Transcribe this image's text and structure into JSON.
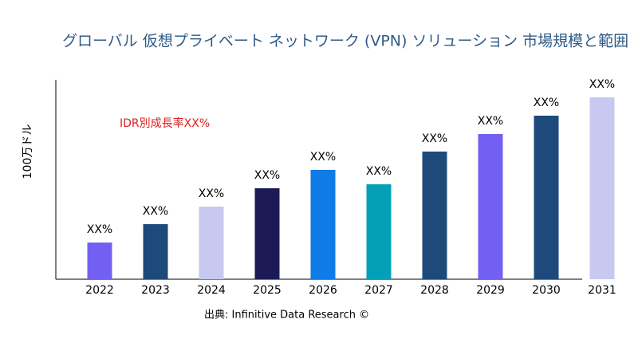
{
  "chart_data": {
    "type": "bar",
    "title": "グローバル 仮想プライベート ネットワーク (VPN) ソリューション 市場規模と範囲",
    "y_label": "100万ドル",
    "annotation": "IDR別成長率XX%",
    "source": "出典: Infinitive Data Research ©",
    "categories": [
      "2022",
      "2023",
      "2024",
      "2025",
      "2026",
      "2027",
      "2028",
      "2029",
      "2030",
      "2031"
    ],
    "values": [
      46,
      69,
      91,
      114,
      137,
      119,
      160,
      182,
      205,
      228
    ],
    "value_labels": [
      "XX%",
      "XX%",
      "XX%",
      "XX%",
      "XX%",
      "XX%",
      "XX%",
      "XX%",
      "XX%",
      "XX%"
    ],
    "colors": [
      "#7360f2",
      "#1d4a7a",
      "#c8c9f0",
      "#1c1a55",
      "#0e7be6",
      "#04a0b5",
      "#1d4a7a",
      "#7360f2",
      "#1d4a7a",
      "#c8c9f0"
    ],
    "ylim": [
      0,
      250
    ]
  }
}
